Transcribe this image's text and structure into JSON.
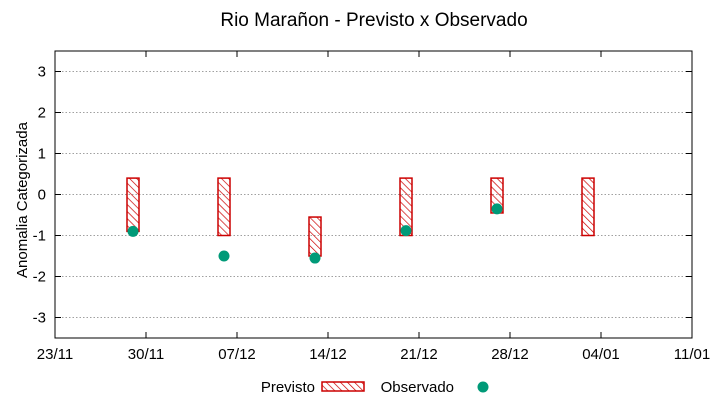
{
  "chart_data": {
    "type": "bar",
    "title": "Rio Marañon - Previsto x Observado",
    "xlabel": "",
    "ylabel": "Anomalia Categorizada",
    "ylim": [
      -3.5,
      3.5
    ],
    "yticks": [
      -3,
      -2,
      -1,
      0,
      1,
      2,
      3
    ],
    "ytick_labels": [
      "-3",
      "-2",
      "-1",
      "0",
      "1",
      "2",
      "3"
    ],
    "x_day_range": [
      0,
      49
    ],
    "xticks": [
      {
        "day": 0,
        "label": "23/11"
      },
      {
        "day": 7,
        "label": "30/11"
      },
      {
        "day": 14,
        "label": "07/12"
      },
      {
        "day": 21,
        "label": "14/12"
      },
      {
        "day": 28,
        "label": "21/12"
      },
      {
        "day": 35,
        "label": "28/12"
      },
      {
        "day": 42,
        "label": "04/01"
      },
      {
        "day": 49,
        "label": "11/01"
      }
    ],
    "grid": true,
    "legend_position": "bottom-center",
    "series": [
      {
        "name": "Previsto",
        "kind": "range-bar",
        "color": "#cc0000",
        "points": [
          {
            "day": 6,
            "low": -0.9,
            "high": 0.4
          },
          {
            "day": 13,
            "low": -1.0,
            "high": 0.4
          },
          {
            "day": 20,
            "low": -1.5,
            "high": -0.55
          },
          {
            "day": 27,
            "low": -1.0,
            "high": 0.4
          },
          {
            "day": 34,
            "low": -0.45,
            "high": 0.4
          },
          {
            "day": 41,
            "low": -1.0,
            "high": 0.4
          }
        ]
      },
      {
        "name": "Observado",
        "kind": "point",
        "color": "#009a78",
        "points": [
          {
            "day": 6,
            "value": -0.9
          },
          {
            "day": 13,
            "value": -1.5
          },
          {
            "day": 20,
            "value": -1.55
          },
          {
            "day": 27,
            "value": -0.88
          },
          {
            "day": 34,
            "value": -0.35
          }
        ]
      }
    ]
  }
}
